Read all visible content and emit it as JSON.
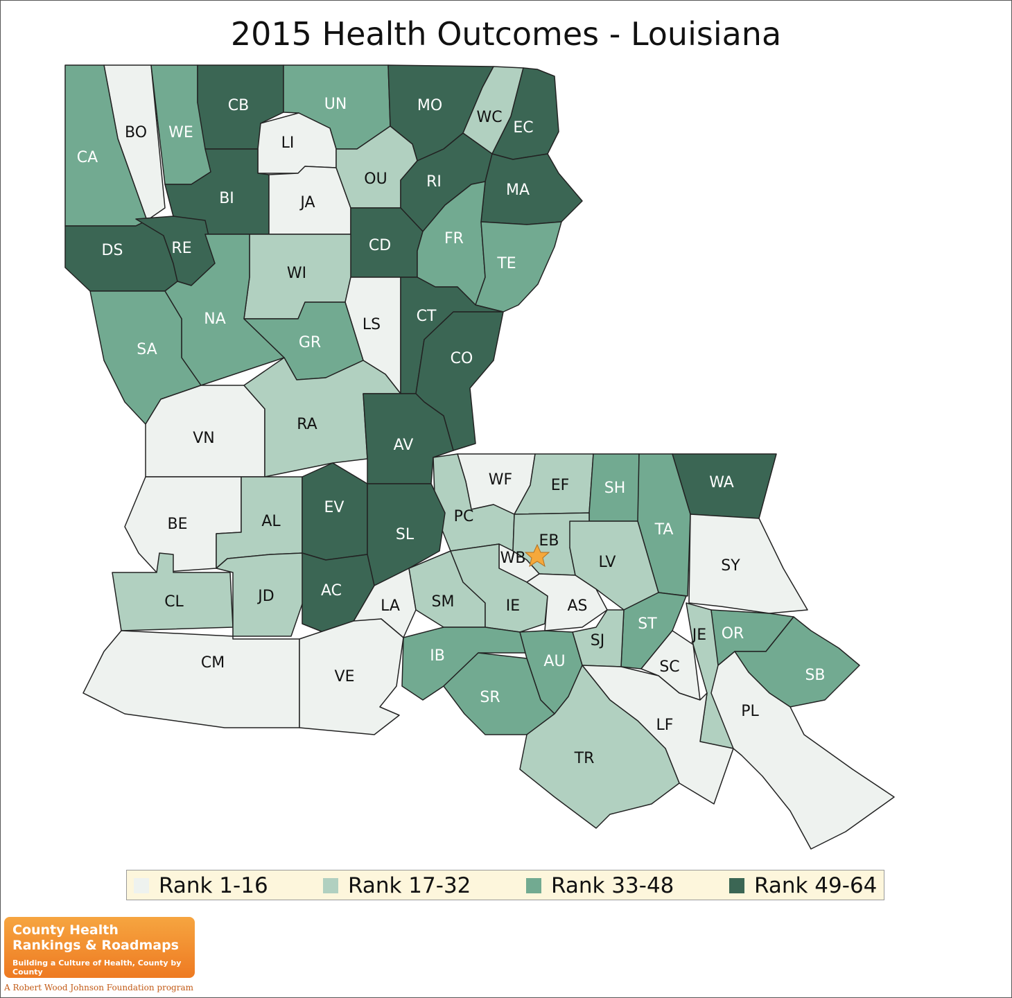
{
  "title": "2015 Health Outcomes - Louisiana",
  "colors": {
    "rank_1_16": "#eef2ef",
    "rank_17_32": "#b1d0c0",
    "rank_33_48": "#72aa91",
    "rank_49_64": "#3b6654",
    "star": "#f5a83a"
  },
  "legend": [
    {
      "label": "Rank 1-16",
      "class": "rank_1_16"
    },
    {
      "label": "Rank 17-32",
      "class": "rank_17_32"
    },
    {
      "label": "Rank 33-48",
      "class": "rank_33_48"
    },
    {
      "label": "Rank 49-64",
      "class": "rank_49_64"
    }
  ],
  "parishes": [
    {
      "code": "BO",
      "class": "rank_1_16"
    },
    {
      "code": "CA",
      "class": "rank_33_48"
    },
    {
      "code": "WE",
      "class": "rank_33_48"
    },
    {
      "code": "CB",
      "class": "rank_49_64"
    },
    {
      "code": "UN",
      "class": "rank_33_48"
    },
    {
      "code": "MO",
      "class": "rank_49_64"
    },
    {
      "code": "WC",
      "class": "rank_17_32"
    },
    {
      "code": "EC",
      "class": "rank_49_64"
    },
    {
      "code": "LI",
      "class": "rank_1_16"
    },
    {
      "code": "BI",
      "class": "rank_49_64"
    },
    {
      "code": "JA",
      "class": "rank_1_16"
    },
    {
      "code": "OU",
      "class": "rank_17_32"
    },
    {
      "code": "RI",
      "class": "rank_49_64"
    },
    {
      "code": "MA",
      "class": "rank_49_64"
    },
    {
      "code": "DS",
      "class": "rank_49_64"
    },
    {
      "code": "RE",
      "class": "rank_49_64"
    },
    {
      "code": "CD",
      "class": "rank_49_64"
    },
    {
      "code": "FR",
      "class": "rank_33_48"
    },
    {
      "code": "TE",
      "class": "rank_33_48"
    },
    {
      "code": "WI",
      "class": "rank_17_32"
    },
    {
      "code": "NA",
      "class": "rank_33_48"
    },
    {
      "code": "LS",
      "class": "rank_1_16"
    },
    {
      "code": "CT",
      "class": "rank_49_64"
    },
    {
      "code": "SA",
      "class": "rank_33_48"
    },
    {
      "code": "GR",
      "class": "rank_33_48"
    },
    {
      "code": "CO",
      "class": "rank_49_64"
    },
    {
      "code": "VN",
      "class": "rank_1_16"
    },
    {
      "code": "RA",
      "class": "rank_17_32"
    },
    {
      "code": "AV",
      "class": "rank_49_64"
    },
    {
      "code": "WF",
      "class": "rank_1_16"
    },
    {
      "code": "EF",
      "class": "rank_17_32"
    },
    {
      "code": "SH",
      "class": "rank_33_48"
    },
    {
      "code": "WA",
      "class": "rank_49_64"
    },
    {
      "code": "BE",
      "class": "rank_1_16"
    },
    {
      "code": "AL",
      "class": "rank_17_32"
    },
    {
      "code": "EV",
      "class": "rank_49_64"
    },
    {
      "code": "PC",
      "class": "rank_17_32"
    },
    {
      "code": "EB",
      "class": "rank_17_32"
    },
    {
      "code": "TA",
      "class": "rank_33_48"
    },
    {
      "code": "SL",
      "class": "rank_49_64"
    },
    {
      "code": "WB",
      "class": "rank_1_16"
    },
    {
      "code": "LV",
      "class": "rank_17_32"
    },
    {
      "code": "SY",
      "class": "rank_1_16"
    },
    {
      "code": "CL",
      "class": "rank_17_32"
    },
    {
      "code": "JD",
      "class": "rank_17_32"
    },
    {
      "code": "AC",
      "class": "rank_49_64"
    },
    {
      "code": "LA",
      "class": "rank_1_16"
    },
    {
      "code": "SM",
      "class": "rank_17_32"
    },
    {
      "code": "IE",
      "class": "rank_17_32"
    },
    {
      "code": "AS",
      "class": "rank_1_16"
    },
    {
      "code": "ST",
      "class": "rank_33_48"
    },
    {
      "code": "JE",
      "class": "rank_17_32"
    },
    {
      "code": "OR",
      "class": "rank_33_48"
    },
    {
      "code": "SJ",
      "class": "rank_17_32"
    },
    {
      "code": "CM",
      "class": "rank_1_16"
    },
    {
      "code": "VE",
      "class": "rank_1_16"
    },
    {
      "code": "IB",
      "class": "rank_33_48"
    },
    {
      "code": "AU",
      "class": "rank_33_48"
    },
    {
      "code": "SC",
      "class": "rank_1_16"
    },
    {
      "code": "SB",
      "class": "rank_33_48"
    },
    {
      "code": "SR",
      "class": "rank_33_48"
    },
    {
      "code": "LF",
      "class": "rank_1_16"
    },
    {
      "code": "PL",
      "class": "rank_1_16"
    },
    {
      "code": "TR",
      "class": "rank_17_32"
    }
  ],
  "logo": {
    "line1": "County Health",
    "line2": "Rankings & Roadmaps",
    "line3": "Building a Culture of Health, County by County",
    "tagline": "A Robert Wood Johnson Foundation program"
  }
}
